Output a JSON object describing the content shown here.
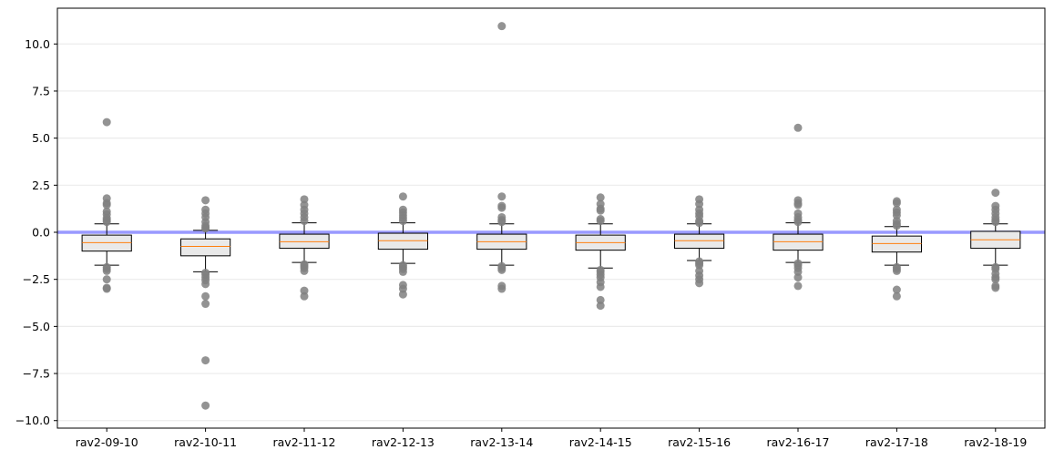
{
  "chart_data": {
    "type": "box",
    "title": "",
    "xlabel": "",
    "ylabel": "",
    "ylim": [
      -10.4,
      11.9
    ],
    "yticks": [
      -10.0,
      -7.5,
      -5.0,
      -2.5,
      0.0,
      2.5,
      5.0,
      7.5,
      10.0
    ],
    "ytick_labels": [
      "−10.0",
      "−7.5",
      "−5.0",
      "−2.5",
      "0.0",
      "2.5",
      "5.0",
      "7.5",
      "10.0"
    ],
    "grid": "horizontal, light",
    "reference_line": {
      "y": 0.0,
      "color": "#9999ff"
    },
    "categories": [
      "rav2-09-10",
      "rav2-10-11",
      "rav2-11-12",
      "rav2-12-13",
      "rav2-13-14",
      "rav2-14-15",
      "rav2-15-16",
      "rav2-16-17",
      "rav2-17-18",
      "rav2-18-19"
    ],
    "boxes": [
      {
        "q1": -1.0,
        "median": -0.55,
        "q3": -0.15,
        "whisker_low": -1.75,
        "whisker_high": 0.45,
        "outliers": [
          5.85,
          1.8,
          1.55,
          1.45,
          1.1,
          0.95,
          0.75,
          0.65,
          0.55,
          -1.85,
          -1.95,
          -2.05,
          -2.5,
          -2.95,
          -3.0
        ]
      },
      {
        "q1": -1.25,
        "median": -0.75,
        "q3": -0.35,
        "whisker_low": -2.1,
        "whisker_high": 0.1,
        "outliers": [
          1.7,
          1.2,
          1.0,
          0.8,
          0.55,
          0.35,
          0.25,
          0.2,
          -2.15,
          -2.25,
          -2.4,
          -2.55,
          -2.75,
          -3.4,
          -3.8,
          -6.8,
          -9.2
        ]
      },
      {
        "q1": -0.85,
        "median": -0.5,
        "q3": -0.1,
        "whisker_low": -1.6,
        "whisker_high": 0.5,
        "outliers": [
          1.75,
          1.45,
          1.2,
          1.0,
          0.8,
          0.6,
          -1.7,
          -1.8,
          -1.9,
          -2.05,
          -3.1,
          -3.4
        ]
      },
      {
        "q1": -0.9,
        "median": -0.45,
        "q3": -0.05,
        "whisker_low": -1.65,
        "whisker_high": 0.5,
        "outliers": [
          1.9,
          1.2,
          1.05,
          0.9,
          0.75,
          0.6,
          -1.75,
          -1.85,
          -1.95,
          -2.1,
          -2.8,
          -3.0,
          -3.3
        ]
      },
      {
        "q1": -0.9,
        "median": -0.5,
        "q3": -0.1,
        "whisker_low": -1.75,
        "whisker_high": 0.45,
        "outliers": [
          10.95,
          1.9,
          1.4,
          1.3,
          0.8,
          0.65,
          0.55,
          -1.8,
          -1.9,
          -2.0,
          -2.85,
          -3.0
        ]
      },
      {
        "q1": -0.95,
        "median": -0.55,
        "q3": -0.15,
        "whisker_low": -1.9,
        "whisker_high": 0.45,
        "outliers": [
          1.85,
          1.5,
          1.25,
          1.15,
          0.7,
          0.6,
          -2.0,
          -2.1,
          -2.25,
          -2.4,
          -2.65,
          -2.9,
          -3.6,
          -3.9
        ]
      },
      {
        "q1": -0.85,
        "median": -0.45,
        "q3": -0.1,
        "whisker_low": -1.5,
        "whisker_high": 0.45,
        "outliers": [
          1.75,
          1.5,
          1.2,
          1.0,
          0.85,
          0.6,
          0.5,
          -1.55,
          -1.65,
          -1.75,
          -2.05,
          -2.3,
          -2.5,
          -2.7
        ]
      },
      {
        "q1": -0.95,
        "median": -0.5,
        "q3": -0.1,
        "whisker_low": -1.6,
        "whisker_high": 0.5,
        "outliers": [
          5.55,
          1.7,
          1.55,
          1.45,
          1.0,
          0.8,
          0.65,
          0.55,
          -1.65,
          -1.75,
          -1.9,
          -2.1,
          -2.4,
          -2.85
        ]
      },
      {
        "q1": -1.05,
        "median": -0.6,
        "q3": -0.2,
        "whisker_low": -1.75,
        "whisker_high": 0.3,
        "outliers": [
          1.65,
          1.55,
          1.2,
          1.05,
          0.9,
          0.6,
          0.45,
          0.35,
          -1.85,
          -1.95,
          -2.05,
          -3.05,
          -3.4
        ]
      },
      {
        "q1": -0.85,
        "median": -0.4,
        "q3": 0.05,
        "whisker_low": -1.75,
        "whisker_high": 0.45,
        "outliers": [
          2.1,
          1.4,
          1.2,
          1.0,
          0.8,
          0.65,
          0.55,
          -1.85,
          -1.95,
          -2.2,
          -2.4,
          -2.5,
          -2.85,
          -2.95
        ]
      }
    ],
    "colors": {
      "box_face": "#e9e9e9",
      "box_edge": "#000000",
      "median": "#ff7f0e",
      "outlier": "#808080",
      "reference_line": "#9999ff",
      "grid": "#ebebeb"
    }
  }
}
